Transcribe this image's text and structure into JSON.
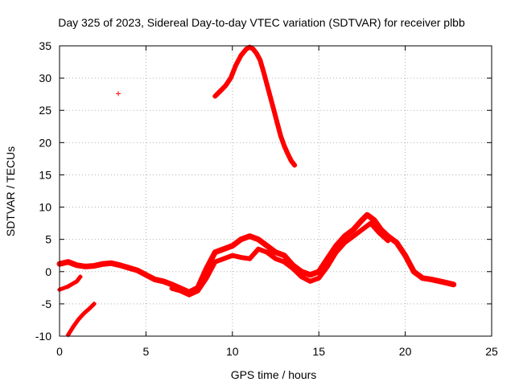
{
  "chart_data": {
    "type": "scatter",
    "title": "Day 325 of 2023, Sidereal Day-to-day VTEC variation (SDTVAR) for receiver plbb",
    "xlabel": "GPS time / hours",
    "ylabel": "SDTVAR / TECUs",
    "xlim": [
      0,
      25
    ],
    "ylim": [
      -10,
      35
    ],
    "xticks": [
      0,
      5,
      10,
      15,
      20,
      25
    ],
    "yticks": [
      -10,
      -5,
      0,
      5,
      10,
      15,
      20,
      25,
      30,
      35
    ],
    "xtick_labels": [
      "0",
      "5",
      "10",
      "15",
      "20",
      "25"
    ],
    "ytick_labels": [
      "-10",
      "-5",
      "0",
      "5",
      "10",
      "15",
      "20",
      "25",
      "30",
      "35"
    ],
    "grid": true,
    "marker": "+",
    "color": "#ff0000",
    "series": [
      {
        "name": "high-arc",
        "x": [
          9.0,
          9.3,
          9.6,
          9.9,
          10.2,
          10.5,
          10.8,
          11.0,
          11.2,
          11.4,
          11.6,
          11.8,
          12.0,
          12.2,
          12.4,
          12.6,
          12.8,
          13.0,
          13.2,
          13.4,
          13.6
        ],
        "y": [
          27.2,
          28.0,
          28.8,
          30.0,
          32.0,
          33.5,
          34.5,
          34.8,
          34.5,
          33.8,
          32.8,
          31.0,
          29.0,
          27.0,
          25.0,
          23.0,
          21.0,
          19.5,
          18.3,
          17.2,
          16.5
        ]
      },
      {
        "name": "outlier",
        "x": [
          3.4
        ],
        "y": [
          27.6
        ]
      },
      {
        "name": "main-band",
        "x": [
          0.0,
          0.5,
          1.0,
          1.5,
          2.0,
          2.5,
          3.0,
          3.5,
          4.0,
          4.5,
          5.0,
          5.5,
          6.0,
          6.5,
          7.0,
          7.5,
          8.0,
          8.5,
          9.0,
          9.5,
          10.0,
          10.5,
          11.0,
          11.5,
          12.0,
          12.5,
          13.0,
          13.5,
          14.0,
          14.5,
          15.0,
          15.5,
          16.0,
          16.5,
          17.0,
          17.5,
          17.8,
          18.2,
          18.6,
          19.0,
          19.5,
          20.0,
          20.5,
          21.0,
          21.5,
          22.0,
          22.5,
          22.8
        ],
        "y": [
          1.2,
          1.5,
          1.0,
          0.8,
          0.9,
          1.2,
          1.3,
          1.0,
          0.6,
          0.2,
          -0.5,
          -1.2,
          -1.5,
          -2.0,
          -2.6,
          -3.2,
          -2.5,
          0.5,
          3.0,
          3.5,
          4.0,
          5.0,
          5.5,
          5.0,
          4.0,
          3.0,
          2.5,
          1.0,
          0.0,
          -0.5,
          0.0,
          2.0,
          4.0,
          5.5,
          6.5,
          8.0,
          8.8,
          8.0,
          6.5,
          5.5,
          4.5,
          2.5,
          0.0,
          -1.0,
          -1.2,
          -1.5,
          -1.8,
          -2.0
        ]
      },
      {
        "name": "lower-band",
        "x": [
          6.5,
          7.0,
          7.5,
          8.0,
          8.5,
          9.0,
          9.5,
          10.0,
          10.5,
          11.0,
          11.5,
          12.0,
          12.5,
          13.0,
          13.5,
          14.0,
          14.5,
          15.0,
          15.5,
          16.0,
          16.5,
          17.0,
          17.5,
          18.0,
          18.5,
          19.0
        ],
        "y": [
          -2.6,
          -3.0,
          -3.6,
          -3.0,
          -1.0,
          1.5,
          2.0,
          2.5,
          2.2,
          2.0,
          3.5,
          3.0,
          2.0,
          1.5,
          0.5,
          -0.8,
          -1.5,
          -1.0,
          0.8,
          3.0,
          4.5,
          5.5,
          6.5,
          7.5,
          6.0,
          4.8
        ]
      },
      {
        "name": "early-short",
        "x": [
          0.0,
          0.5,
          1.0,
          1.2
        ],
        "y": [
          -2.8,
          -2.3,
          -1.5,
          -0.8
        ]
      },
      {
        "name": "early-rise",
        "x": [
          0.5,
          0.8,
          1.1,
          1.4,
          1.7,
          2.0
        ],
        "y": [
          -9.8,
          -8.5,
          -7.4,
          -6.5,
          -5.8,
          -5.0
        ]
      }
    ]
  }
}
